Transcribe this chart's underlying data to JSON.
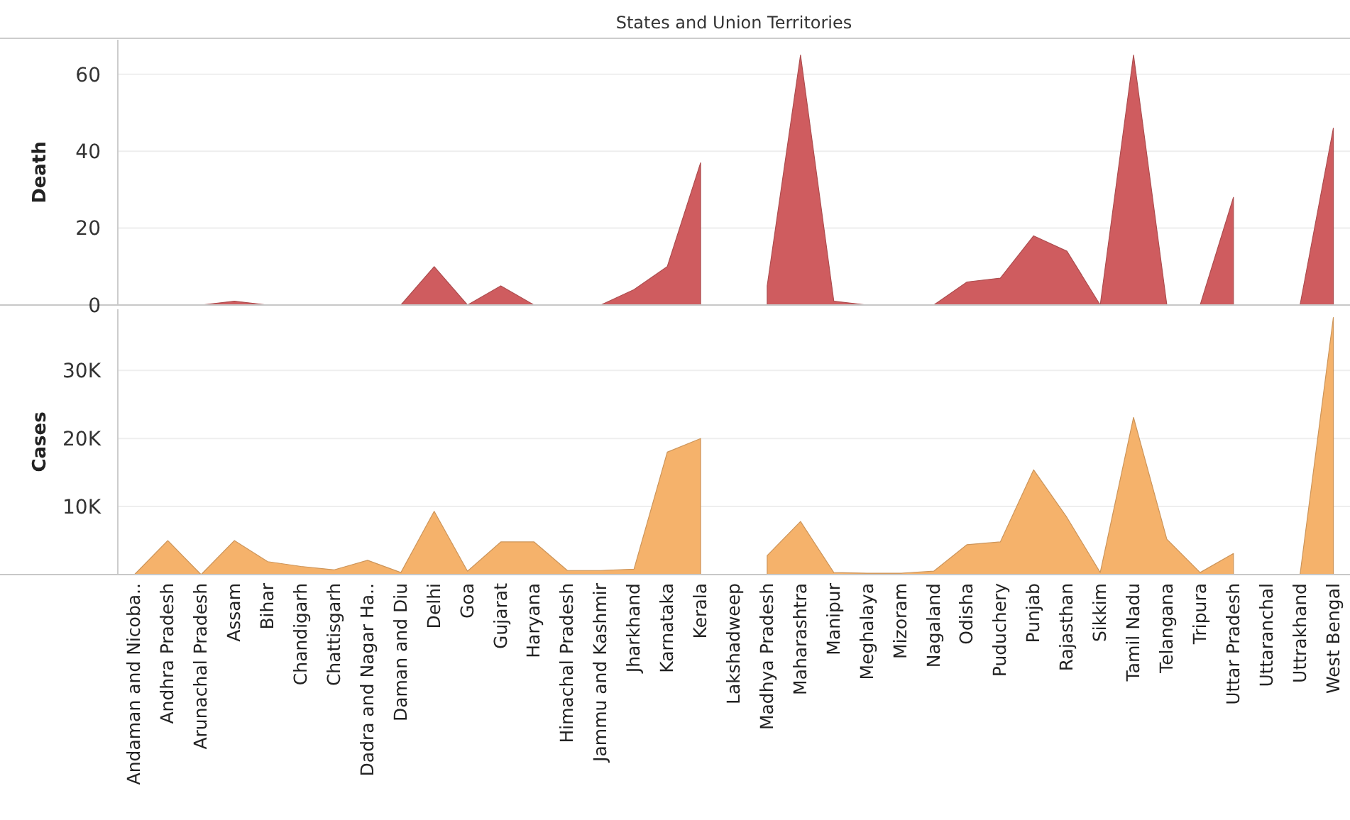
{
  "chart_data": [
    {
      "type": "area",
      "xlabel": "States and Union Territories",
      "ylabel": "Death",
      "tick_labels": "y",
      "grid": "y",
      "series": [
        {
          "color": "#cf5c5f",
          "values": [
            0,
            0,
            0,
            1,
            0,
            0,
            0,
            0,
            0,
            10,
            0,
            5,
            0,
            0,
            0,
            4,
            10,
            37,
            null,
            5,
            65,
            1,
            0,
            0,
            0,
            6,
            7,
            18,
            14,
            0,
            65,
            0,
            0,
            28,
            null,
            0,
            46
          ]
        }
      ],
      "ylim": [
        0,
        69
      ],
      "yticks": [
        0,
        20,
        40,
        60
      ]
    },
    {
      "type": "area",
      "ylabel": "Cases",
      "grid": "y",
      "categories": [
        "Andaman and Nicoba..",
        "Andhra Pradesh",
        "Arunachal Pradesh",
        "Assam",
        "Bihar",
        "Chandigarh",
        "Chattisgarh",
        "Dadra and Nagar Ha..",
        "Daman and Diu",
        "Delhi",
        "Goa",
        "Gujarat",
        "Haryana",
        "Himachal Pradesh",
        "Jammu and Kashmir",
        "Jharkhand",
        "Karnataka",
        "Kerala",
        "Lakshadweep",
        "Madhya Pradesh",
        "Maharashtra",
        "Manipur",
        "Meghalaya",
        "Mizoram",
        "Nagaland",
        "Odisha",
        "Puduchery",
        "Punjab",
        "Rajasthan",
        "Sikkim",
        "Tamil Nadu",
        "Telangana",
        "Tripura",
        "Uttar Pradesh",
        "Uttaranchal",
        "Uttrakhand",
        "West Bengal"
      ],
      "series": [
        {
          "color": "#f5b26b",
          "values": [
            0,
            5000,
            0,
            5000,
            1900,
            1200,
            700,
            2100,
            300,
            9300,
            500,
            4800,
            4800,
            600,
            600,
            800,
            18000,
            20000,
            null,
            2800,
            7800,
            300,
            200,
            200,
            500,
            4400,
            4800,
            15400,
            8400,
            300,
            23100,
            5200,
            300,
            3100,
            null,
            0,
            37800
          ]
        }
      ],
      "ylim": [
        0,
        39000
      ],
      "yticks": [
        {
          "value": 10000,
          "label": "10K"
        },
        {
          "value": 20000,
          "label": "20K"
        },
        {
          "value": 30000,
          "label": "30K"
        }
      ]
    }
  ]
}
